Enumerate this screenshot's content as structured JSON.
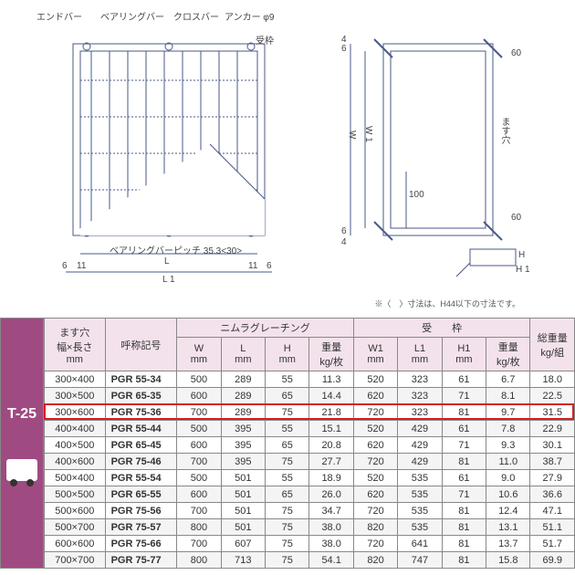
{
  "diagram": {
    "left_labels": {
      "endbar": "エンドバー",
      "bearingbar": "ベアリングバー",
      "crossbar": "クロスバー",
      "anchor": "アンカー φ9",
      "frame": "受枠",
      "pitch": "ベアリングバーピッチ 35.3<30>",
      "L": "L",
      "L1": "L 1",
      "d6a": "6",
      "d6b": "6",
      "d11a": "11",
      "d11b": "11"
    },
    "right_labels": {
      "W": "W",
      "W1": "W 1",
      "hole": "ます穴",
      "H": "H",
      "H1": "H 1",
      "d60a": "60",
      "d60b": "60",
      "d100": "100",
      "d4": "4",
      "d6a": "6",
      "d6b": "6",
      "d4b": "4"
    },
    "footnote": "※〈　〉寸法は、H44以下の寸法です。",
    "line_color": "#4a5a8a",
    "text_color": "#444444"
  },
  "side_label": "T-25",
  "side_bg": "#a04a82",
  "highlight_color": "#d4201f",
  "highlight_row_index": 2,
  "table": {
    "group_headers": {
      "hole": "ます穴\n幅×長さ\nmm",
      "code": "呼称記号",
      "grating": "ニムラグレーチング",
      "frame": "受　　枠",
      "total": "総重量\nkg/組"
    },
    "sub_headers": [
      {
        "t": "W",
        "u": "mm"
      },
      {
        "t": "L",
        "u": "mm"
      },
      {
        "t": "H",
        "u": "mm"
      },
      {
        "t": "重量",
        "u": "kg/枚"
      },
      {
        "t": "W1",
        "u": "mm"
      },
      {
        "t": "L1",
        "u": "mm"
      },
      {
        "t": "H1",
        "u": "mm"
      },
      {
        "t": "重量",
        "u": "kg/枚"
      }
    ],
    "rows": [
      {
        "hole": "300×400",
        "code": "PGR 55-34",
        "W": "500",
        "L": "289",
        "H": "55",
        "gW": "11.3",
        "W1": "520",
        "L1": "323",
        "H1": "61",
        "fW": "6.7",
        "tot": "18.0",
        "alt": false
      },
      {
        "hole": "300×500",
        "code": "PGR 65-35",
        "W": "600",
        "L": "289",
        "H": "65",
        "gW": "14.4",
        "W1": "620",
        "L1": "323",
        "H1": "71",
        "fW": "8.1",
        "tot": "22.5",
        "alt": true
      },
      {
        "hole": "300×600",
        "code": "PGR 75-36",
        "W": "700",
        "L": "289",
        "H": "75",
        "gW": "21.8",
        "W1": "720",
        "L1": "323",
        "H1": "81",
        "fW": "9.7",
        "tot": "31.5",
        "alt": false
      },
      {
        "hole": "400×400",
        "code": "PGR 55-44",
        "W": "500",
        "L": "395",
        "H": "55",
        "gW": "15.1",
        "W1": "520",
        "L1": "429",
        "H1": "61",
        "fW": "7.8",
        "tot": "22.9",
        "alt": true
      },
      {
        "hole": "400×500",
        "code": "PGR 65-45",
        "W": "600",
        "L": "395",
        "H": "65",
        "gW": "20.8",
        "W1": "620",
        "L1": "429",
        "H1": "71",
        "fW": "9.3",
        "tot": "30.1",
        "alt": false
      },
      {
        "hole": "400×600",
        "code": "PGR 75-46",
        "W": "700",
        "L": "395",
        "H": "75",
        "gW": "27.7",
        "W1": "720",
        "L1": "429",
        "H1": "81",
        "fW": "11.0",
        "tot": "38.7",
        "alt": true
      },
      {
        "hole": "500×400",
        "code": "PGR 55-54",
        "W": "500",
        "L": "501",
        "H": "55",
        "gW": "18.9",
        "W1": "520",
        "L1": "535",
        "H1": "61",
        "fW": "9.0",
        "tot": "27.9",
        "alt": false
      },
      {
        "hole": "500×500",
        "code": "PGR 65-55",
        "W": "600",
        "L": "501",
        "H": "65",
        "gW": "26.0",
        "W1": "620",
        "L1": "535",
        "H1": "71",
        "fW": "10.6",
        "tot": "36.6",
        "alt": true
      },
      {
        "hole": "500×600",
        "code": "PGR 75-56",
        "W": "700",
        "L": "501",
        "H": "75",
        "gW": "34.7",
        "W1": "720",
        "L1": "535",
        "H1": "81",
        "fW": "12.4",
        "tot": "47.1",
        "alt": false
      },
      {
        "hole": "500×700",
        "code": "PGR 75-57",
        "W": "800",
        "L": "501",
        "H": "75",
        "gW": "38.0",
        "W1": "820",
        "L1": "535",
        "H1": "81",
        "fW": "13.1",
        "tot": "51.1",
        "alt": true
      },
      {
        "hole": "600×600",
        "code": "PGR 75-66",
        "W": "700",
        "L": "607",
        "H": "75",
        "gW": "38.0",
        "W1": "720",
        "L1": "641",
        "H1": "81",
        "fW": "13.7",
        "tot": "51.7",
        "alt": false
      },
      {
        "hole": "700×700",
        "code": "PGR 75-77",
        "W": "800",
        "L": "713",
        "H": "75",
        "gW": "54.1",
        "W1": "820",
        "L1": "747",
        "H1": "81",
        "fW": "15.8",
        "tot": "69.9",
        "alt": true
      }
    ]
  }
}
